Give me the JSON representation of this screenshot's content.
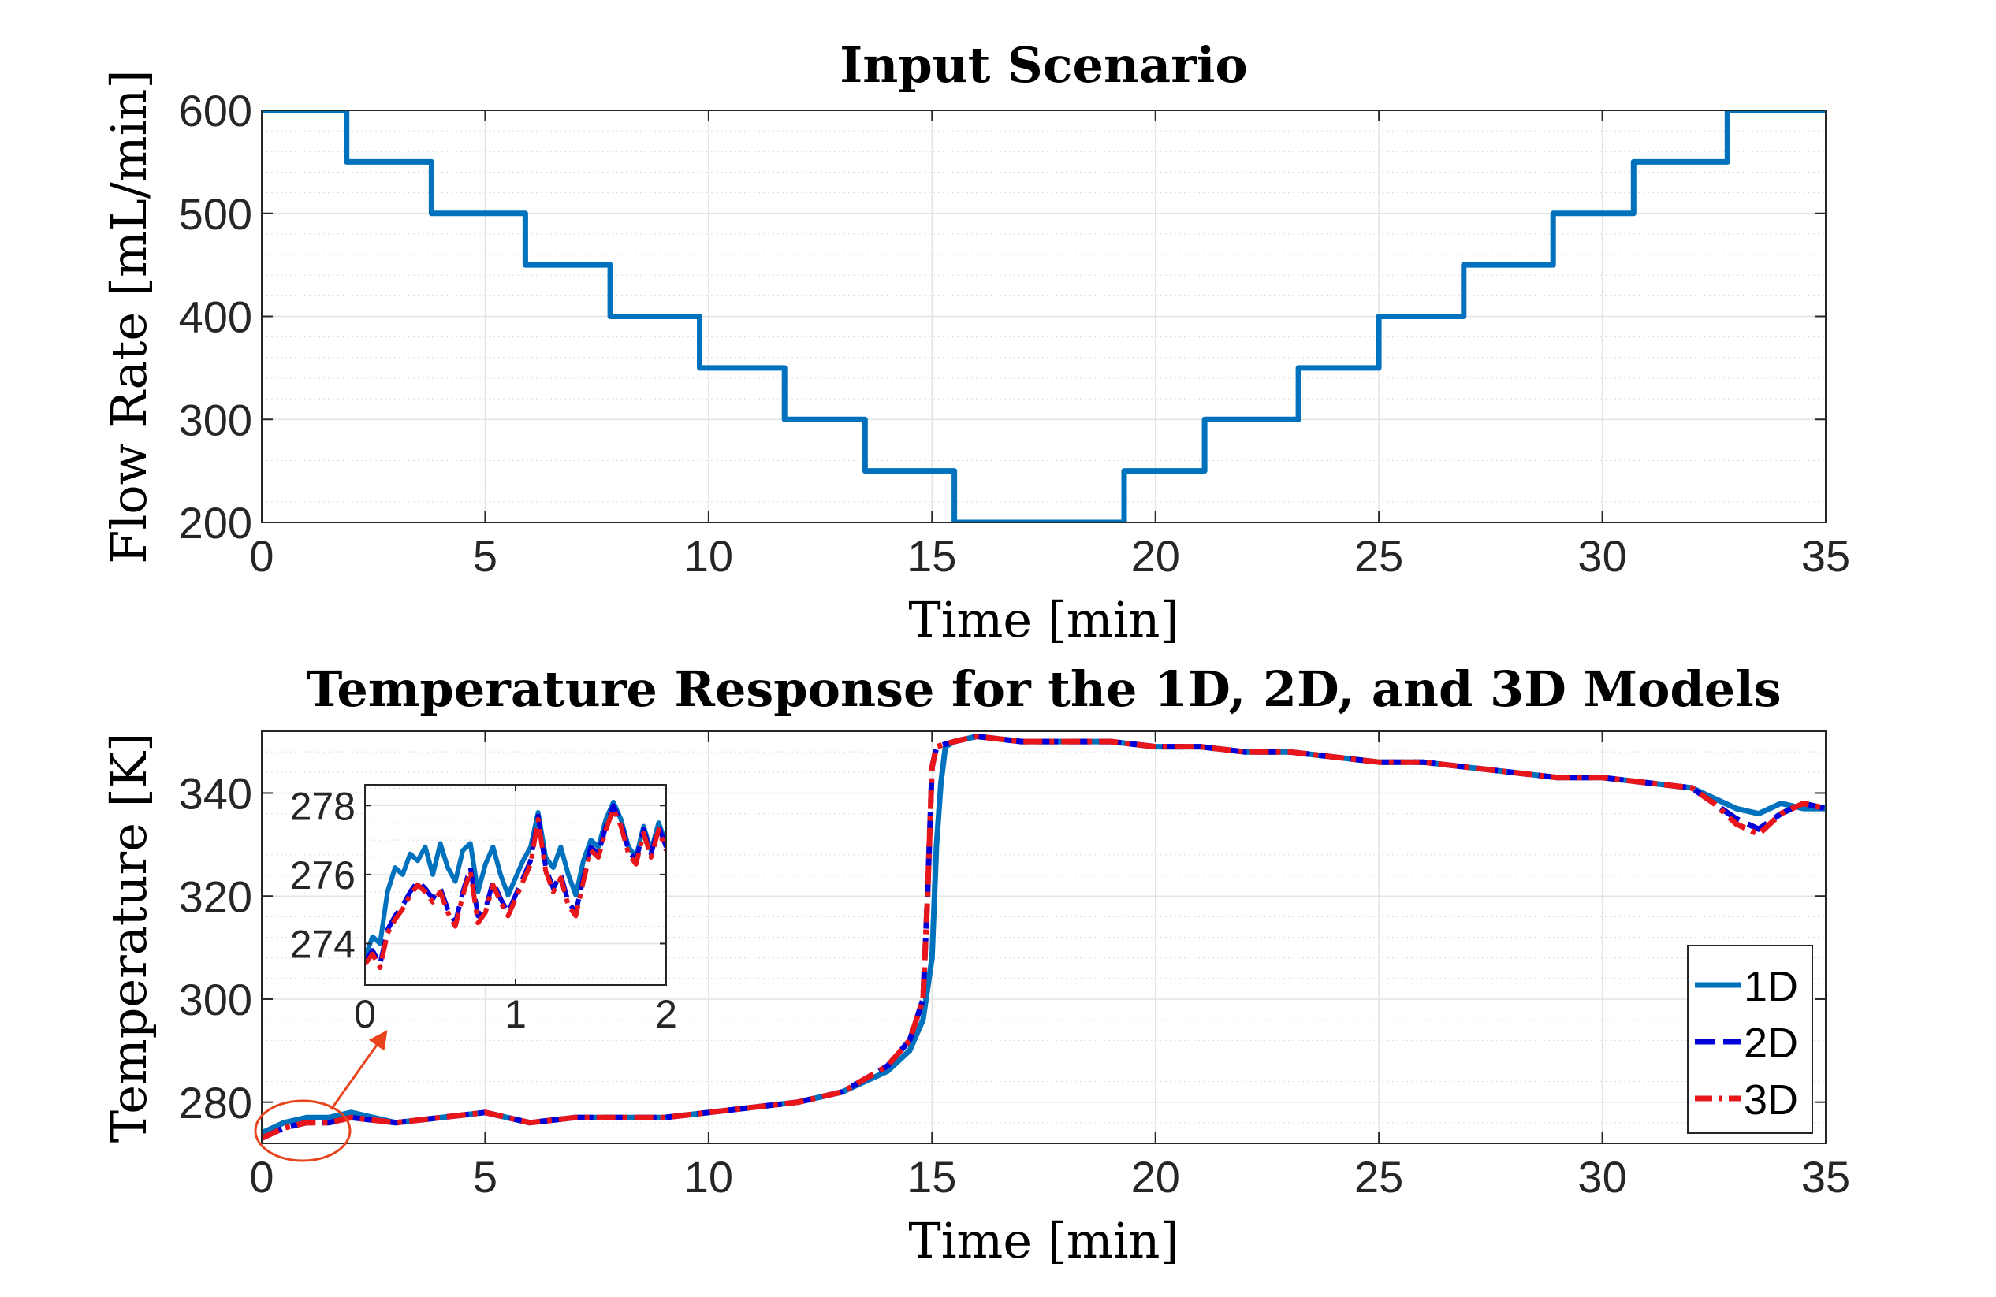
{
  "chart_data": [
    {
      "type": "line",
      "title": "Input Scenario",
      "xlabel": "Time [min]",
      "ylabel": "Flow Rate [mL/min]",
      "xlim": [
        0,
        35
      ],
      "ylim": [
        200,
        600
      ],
      "xticks": [
        0,
        5,
        10,
        15,
        20,
        25,
        30,
        35
      ],
      "yticks": [
        200,
        300,
        400,
        500,
        600
      ],
      "grid": true,
      "series": [
        {
          "name": "Flow rate",
          "color": "#0072BD",
          "style": "step",
          "x": [
            0,
            1.9,
            1.9,
            3.8,
            3.8,
            5.9,
            5.9,
            7.8,
            7.8,
            9.8,
            9.8,
            11.7,
            11.7,
            13.5,
            13.5,
            15.5,
            15.5,
            19.3,
            19.3,
            21.1,
            21.1,
            23.2,
            23.2,
            25.0,
            25.0,
            26.9,
            26.9,
            28.9,
            28.9,
            30.7,
            30.7,
            32.8,
            32.8,
            35
          ],
          "y": [
            600,
            600,
            550,
            550,
            500,
            500,
            450,
            450,
            400,
            400,
            350,
            350,
            300,
            300,
            250,
            250,
            200,
            200,
            250,
            250,
            300,
            300,
            350,
            350,
            400,
            400,
            450,
            450,
            500,
            500,
            550,
            550,
            600,
            600
          ]
        }
      ]
    },
    {
      "type": "line",
      "title": "Temperature Response for the 1D, 2D, and 3D Models",
      "xlabel": "Time [min]",
      "ylabel": "Temperature [K]",
      "xlim": [
        0,
        35
      ],
      "ylim": [
        272,
        352
      ],
      "xticks": [
        0,
        5,
        10,
        15,
        20,
        25,
        30,
        35
      ],
      "yticks": [
        280,
        300,
        320,
        340
      ],
      "grid": true,
      "legend": {
        "position": "bottom-right",
        "entries": [
          "1D",
          "2D",
          "3D"
        ]
      },
      "series": [
        {
          "name": "1D",
          "color": "#0072BD",
          "style": "solid",
          "x": [
            0,
            0.5,
            1,
            1.5,
            2,
            3,
            4,
            5,
            6,
            7,
            8,
            9,
            10,
            11,
            12,
            13,
            14,
            14.5,
            14.8,
            15.0,
            15.1,
            15.2,
            15.3,
            15.5,
            16,
            17,
            18,
            19,
            20,
            21,
            22,
            23,
            24,
            25,
            26,
            27,
            28,
            29,
            30,
            31,
            32,
            32.5,
            33,
            33.5,
            34,
            34.5,
            35
          ],
          "y": [
            274,
            276,
            277,
            277,
            278,
            276,
            277,
            278,
            276,
            277,
            277,
            277,
            278,
            279,
            280,
            282,
            286,
            290,
            296,
            308,
            330,
            342,
            349,
            350,
            351,
            350,
            350,
            350,
            349,
            349,
            348,
            348,
            347,
            346,
            346,
            345,
            344,
            343,
            343,
            342,
            341,
            339,
            337,
            336,
            338,
            337,
            337
          ]
        },
        {
          "name": "2D",
          "color": "#0000D8",
          "style": "dashed",
          "x": [
            0,
            0.5,
            1,
            1.5,
            2,
            3,
            4,
            5,
            6,
            7,
            8,
            9,
            10,
            11,
            12,
            13,
            14,
            14.5,
            14.8,
            14.9,
            15.0,
            15.1,
            15.5,
            16,
            17,
            18,
            19,
            20,
            21,
            22,
            23,
            24,
            25,
            26,
            27,
            28,
            29,
            30,
            31,
            32,
            32.5,
            33,
            33.5,
            34,
            34.5,
            35
          ],
          "y": [
            273,
            275,
            276,
            276,
            277,
            276,
            277,
            278,
            276,
            277,
            277,
            277,
            278,
            279,
            280,
            282,
            287,
            292,
            300,
            320,
            345,
            349,
            350,
            351,
            350,
            350,
            350,
            349,
            349,
            348,
            348,
            347,
            346,
            346,
            345,
            344,
            343,
            343,
            342,
            341,
            338,
            335,
            333,
            336,
            338,
            337
          ]
        },
        {
          "name": "3D",
          "color": "#E8161B",
          "style": "dashdot",
          "x": [
            0,
            0.5,
            1,
            1.5,
            2,
            3,
            4,
            5,
            6,
            7,
            8,
            9,
            10,
            11,
            12,
            13,
            14,
            14.5,
            14.8,
            14.9,
            15.0,
            15.1,
            15.5,
            16,
            17,
            18,
            19,
            20,
            21,
            22,
            23,
            24,
            25,
            26,
            27,
            28,
            29,
            30,
            31,
            32,
            32.5,
            33,
            33.5,
            34,
            34.5,
            35
          ],
          "y": [
            273,
            275,
            276,
            276,
            277,
            276,
            277,
            278,
            276,
            277,
            277,
            277,
            278,
            279,
            280,
            282,
            287,
            292,
            300,
            320,
            345,
            349,
            350,
            351,
            350,
            350,
            350,
            349,
            349,
            348,
            348,
            347,
            346,
            346,
            345,
            344,
            343,
            343,
            342,
            341,
            338,
            334,
            332,
            336,
            338,
            337
          ]
        }
      ]
    },
    {
      "type": "line",
      "title": "",
      "role": "inset of temperature response (0 to 2 min)",
      "xlim": [
        0,
        2
      ],
      "ylim": [
        272.8,
        278.6
      ],
      "xticks": [
        0,
        1,
        2
      ],
      "yticks": [
        274,
        276,
        278
      ],
      "grid": true,
      "series": [
        {
          "name": "1D",
          "color": "#0072BD",
          "style": "solid",
          "x": [
            0,
            0.05,
            0.1,
            0.15,
            0.2,
            0.25,
            0.3,
            0.35,
            0.4,
            0.45,
            0.5,
            0.55,
            0.6,
            0.65,
            0.7,
            0.75,
            0.8,
            0.85,
            0.9,
            0.95,
            1.0,
            1.05,
            1.1,
            1.15,
            1.2,
            1.25,
            1.3,
            1.35,
            1.4,
            1.45,
            1.5,
            1.55,
            1.6,
            1.65,
            1.7,
            1.75,
            1.8,
            1.85,
            1.9,
            1.95,
            2.0
          ],
          "y": [
            273.6,
            274.2,
            274.0,
            275.5,
            276.2,
            276.0,
            276.6,
            276.4,
            276.8,
            276.0,
            276.9,
            276.2,
            275.8,
            276.7,
            276.9,
            275.5,
            276.3,
            276.8,
            276.0,
            275.4,
            275.9,
            276.4,
            276.8,
            277.8,
            276.5,
            276.2,
            276.8,
            276.0,
            275.4,
            276.4,
            277.0,
            276.8,
            277.6,
            278.1,
            277.6,
            276.8,
            276.5,
            277.4,
            276.7,
            277.5,
            276.9
          ]
        },
        {
          "name": "2D",
          "color": "#0000D8",
          "style": "dashed",
          "x": [
            0,
            0.05,
            0.1,
            0.15,
            0.2,
            0.25,
            0.3,
            0.35,
            0.4,
            0.45,
            0.5,
            0.55,
            0.6,
            0.65,
            0.7,
            0.75,
            0.8,
            0.85,
            0.9,
            0.95,
            1.0,
            1.05,
            1.1,
            1.15,
            1.2,
            1.25,
            1.3,
            1.35,
            1.4,
            1.45,
            1.5,
            1.55,
            1.6,
            1.65,
            1.7,
            1.75,
            1.8,
            1.85,
            1.9,
            1.95,
            2.0
          ],
          "y": [
            273.5,
            273.8,
            273.4,
            274.4,
            274.8,
            275.1,
            275.5,
            275.8,
            275.6,
            275.3,
            275.6,
            275.0,
            274.6,
            275.5,
            276.2,
            274.8,
            275.0,
            275.8,
            275.3,
            274.9,
            275.4,
            275.9,
            276.4,
            277.7,
            276.2,
            275.6,
            276.0,
            275.2,
            274.9,
            275.9,
            276.8,
            276.6,
            277.4,
            278.0,
            277.5,
            276.7,
            276.4,
            277.3,
            276.6,
            277.4,
            276.8
          ]
        },
        {
          "name": "3D",
          "color": "#E8161B",
          "style": "dashdot",
          "x": [
            0,
            0.05,
            0.1,
            0.15,
            0.2,
            0.25,
            0.3,
            0.35,
            0.4,
            0.45,
            0.5,
            0.55,
            0.6,
            0.65,
            0.7,
            0.75,
            0.8,
            0.85,
            0.9,
            0.95,
            1.0,
            1.05,
            1.1,
            1.15,
            1.2,
            1.25,
            1.3,
            1.35,
            1.4,
            1.45,
            1.5,
            1.55,
            1.6,
            1.65,
            1.7,
            1.75,
            1.8,
            1.85,
            1.9,
            1.95,
            2.0
          ],
          "y": [
            273.4,
            273.7,
            273.3,
            274.3,
            274.7,
            275.0,
            275.4,
            275.7,
            275.5,
            275.2,
            275.5,
            274.9,
            274.5,
            275.4,
            276.1,
            274.6,
            274.9,
            275.7,
            275.2,
            274.8,
            275.3,
            275.8,
            276.3,
            277.6,
            276.1,
            275.5,
            275.9,
            275.1,
            274.8,
            275.8,
            276.7,
            276.5,
            277.3,
            277.9,
            277.4,
            276.6,
            276.3,
            277.2,
            276.5,
            277.3,
            276.7
          ]
        }
      ]
    }
  ]
}
